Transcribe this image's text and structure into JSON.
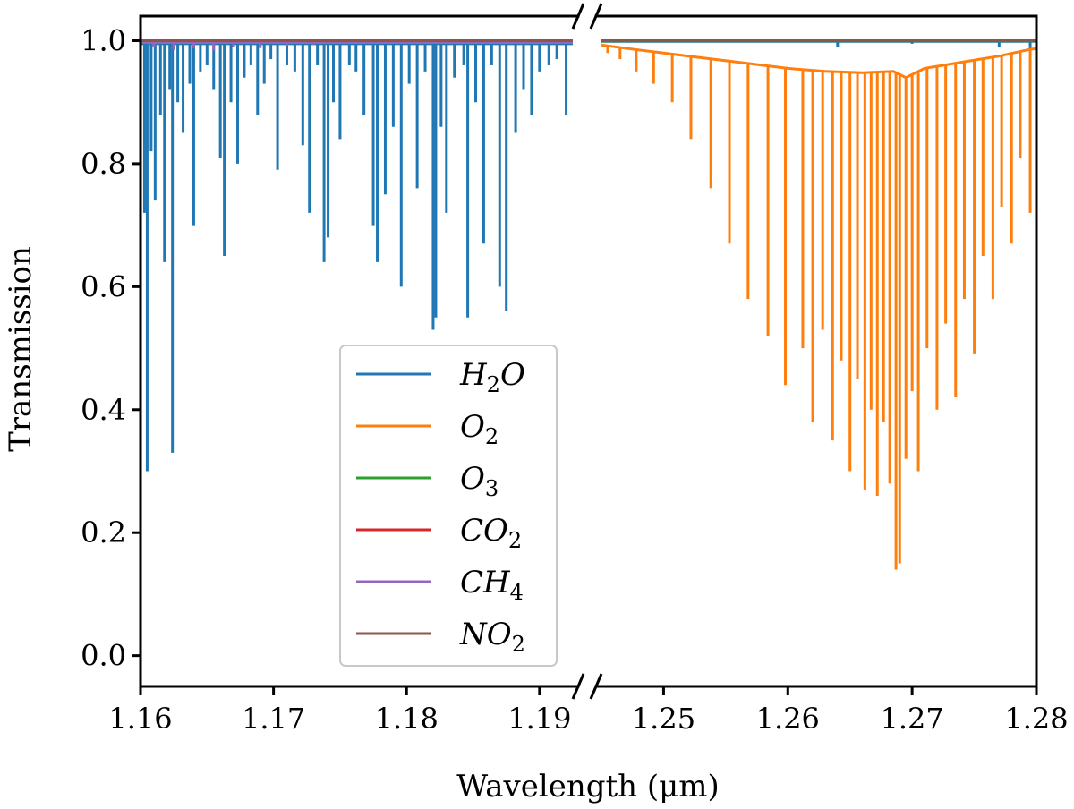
{
  "chart_data": {
    "type": "line",
    "title": "",
    "xlabel": "Wavelength (μm)",
    "ylabel": "Transmission",
    "ylim": [
      -0.05,
      1.04
    ],
    "yticks": [
      "0.0",
      "0.2",
      "0.4",
      "0.6",
      "0.8",
      "1.0"
    ],
    "broken_x_axis": true,
    "segments": [
      {
        "xlim": [
          1.16,
          1.1925
        ],
        "xticks": [
          "1.16",
          "1.17",
          "1.18",
          "1.19"
        ]
      },
      {
        "xlim": [
          1.245,
          1.28
        ],
        "xticks": [
          "1.25",
          "1.26",
          "1.27",
          "1.28"
        ]
      }
    ],
    "legend": {
      "location": "center-left"
    },
    "series": [
      {
        "name": "H2O",
        "label_base": "H",
        "label_sub": "2",
        "label_tail": "O",
        "color": "#1f77b4",
        "baseline": [
          [
            1.16,
            0.995
          ],
          [
            1.1925,
            0.995
          ],
          [
            1.245,
            0.999
          ],
          [
            1.28,
            0.999
          ]
        ],
        "lines": [
          [
            1.1603,
            0.72
          ],
          [
            1.1605,
            0.3
          ],
          [
            1.1608,
            0.82
          ],
          [
            1.1611,
            0.74
          ],
          [
            1.1615,
            0.88
          ],
          [
            1.1618,
            0.64
          ],
          [
            1.1622,
            0.92
          ],
          [
            1.1624,
            0.33
          ],
          [
            1.1628,
            0.9
          ],
          [
            1.1632,
            0.85
          ],
          [
            1.1637,
            0.93
          ],
          [
            1.164,
            0.7
          ],
          [
            1.1645,
            0.95
          ],
          [
            1.165,
            0.96
          ],
          [
            1.1655,
            0.92
          ],
          [
            1.166,
            0.81
          ],
          [
            1.1663,
            0.65
          ],
          [
            1.1668,
            0.9
          ],
          [
            1.1673,
            0.8
          ],
          [
            1.1678,
            0.94
          ],
          [
            1.1683,
            0.96
          ],
          [
            1.1688,
            0.88
          ],
          [
            1.1693,
            0.93
          ],
          [
            1.1698,
            0.97
          ],
          [
            1.1703,
            0.79
          ],
          [
            1.171,
            0.96
          ],
          [
            1.1716,
            0.95
          ],
          [
            1.1722,
            0.83
          ],
          [
            1.1727,
            0.72
          ],
          [
            1.1733,
            0.96
          ],
          [
            1.1738,
            0.64
          ],
          [
            1.1741,
            0.68
          ],
          [
            1.1745,
            0.9
          ],
          [
            1.175,
            0.84
          ],
          [
            1.1757,
            0.96
          ],
          [
            1.1762,
            0.95
          ],
          [
            1.1768,
            0.88
          ],
          [
            1.1775,
            0.7
          ],
          [
            1.1778,
            0.64
          ],
          [
            1.1784,
            0.75
          ],
          [
            1.179,
            0.86
          ],
          [
            1.1796,
            0.6
          ],
          [
            1.1802,
            0.93
          ],
          [
            1.1808,
            0.76
          ],
          [
            1.1814,
            0.95
          ],
          [
            1.182,
            0.53
          ],
          [
            1.1822,
            0.55
          ],
          [
            1.1826,
            0.86
          ],
          [
            1.183,
            0.72
          ],
          [
            1.1836,
            0.94
          ],
          [
            1.1843,
            0.96
          ],
          [
            1.1846,
            0.55
          ],
          [
            1.1852,
            0.9
          ],
          [
            1.1858,
            0.67
          ],
          [
            1.1864,
            0.96
          ],
          [
            1.187,
            0.6
          ],
          [
            1.1875,
            0.56
          ],
          [
            1.1882,
            0.85
          ],
          [
            1.1888,
            0.92
          ],
          [
            1.1894,
            0.88
          ],
          [
            1.19,
            0.95
          ],
          [
            1.1907,
            0.96
          ],
          [
            1.1913,
            0.97
          ],
          [
            1.192,
            0.88
          ],
          [
            1.264,
            0.99
          ],
          [
            1.27,
            0.995
          ],
          [
            1.277,
            0.99
          ],
          [
            1.2795,
            0.985
          ]
        ]
      },
      {
        "name": "O2",
        "label_base": "O",
        "label_sub": "2",
        "label_tail": "",
        "color": "#ff7f0e",
        "baseline": [
          [
            1.245,
            0.993
          ],
          [
            1.248,
            0.985
          ],
          [
            1.252,
            0.975
          ],
          [
            1.256,
            0.965
          ],
          [
            1.26,
            0.955
          ],
          [
            1.263,
            0.95
          ],
          [
            1.266,
            0.948
          ],
          [
            1.2685,
            0.95
          ],
          [
            1.2695,
            0.94
          ],
          [
            1.271,
            0.955
          ],
          [
            1.274,
            0.965
          ],
          [
            1.277,
            0.975
          ],
          [
            1.2795,
            0.986
          ],
          [
            1.28,
            0.987
          ]
        ],
        "lines": [
          [
            1.2455,
            0.98
          ],
          [
            1.2465,
            0.97
          ],
          [
            1.2478,
            0.95
          ],
          [
            1.2492,
            0.93
          ],
          [
            1.2507,
            0.9
          ],
          [
            1.2522,
            0.84
          ],
          [
            1.2538,
            0.76
          ],
          [
            1.2553,
            0.67
          ],
          [
            1.2568,
            0.58
          ],
          [
            1.2584,
            0.52
          ],
          [
            1.2598,
            0.44
          ],
          [
            1.2612,
            0.5
          ],
          [
            1.262,
            0.38
          ],
          [
            1.2628,
            0.53
          ],
          [
            1.2636,
            0.35
          ],
          [
            1.2643,
            0.48
          ],
          [
            1.265,
            0.3
          ],
          [
            1.2656,
            0.45
          ],
          [
            1.2662,
            0.27
          ],
          [
            1.2667,
            0.4
          ],
          [
            1.2672,
            0.26
          ],
          [
            1.2677,
            0.38
          ],
          [
            1.2682,
            0.28
          ],
          [
            1.2687,
            0.14
          ],
          [
            1.269,
            0.15
          ],
          [
            1.2695,
            0.32
          ],
          [
            1.27,
            0.43
          ],
          [
            1.2705,
            0.3
          ],
          [
            1.2712,
            0.5
          ],
          [
            1.272,
            0.4
          ],
          [
            1.2727,
            0.54
          ],
          [
            1.2735,
            0.42
          ],
          [
            1.2742,
            0.58
          ],
          [
            1.275,
            0.49
          ],
          [
            1.2757,
            0.65
          ],
          [
            1.2765,
            0.58
          ],
          [
            1.2772,
            0.73
          ],
          [
            1.278,
            0.67
          ],
          [
            1.2787,
            0.81
          ],
          [
            1.2795,
            0.72
          ],
          [
            1.28,
            0.87
          ]
        ]
      },
      {
        "name": "O3",
        "label_base": "O",
        "label_sub": "3",
        "label_tail": "",
        "color": "#2ca02c",
        "baseline": [
          [
            1.16,
            0.9995
          ],
          [
            1.1925,
            0.9995
          ],
          [
            1.245,
            0.9995
          ],
          [
            1.28,
            0.9995
          ]
        ],
        "lines": []
      },
      {
        "name": "CO2",
        "label_base": "CO",
        "label_sub": "2",
        "label_tail": "",
        "color": "#d62728",
        "baseline": [
          [
            1.16,
            1.0
          ],
          [
            1.1925,
            1.0
          ],
          [
            1.245,
            1.0
          ],
          [
            1.28,
            1.0
          ]
        ],
        "lines": []
      },
      {
        "name": "CH4",
        "label_base": "CH",
        "label_sub": "4",
        "label_tail": "",
        "color": "#9467bd",
        "baseline": [
          [
            1.16,
            0.997
          ],
          [
            1.1925,
            0.997
          ]
        ],
        "lines": [
          [
            1.161,
            0.99
          ],
          [
            1.1625,
            0.985
          ],
          [
            1.164,
            0.988
          ],
          [
            1.1655,
            0.984
          ],
          [
            1.167,
            0.99
          ],
          [
            1.169,
            0.988
          ],
          [
            1.171,
            0.992
          ],
          [
            1.173,
            0.993
          ]
        ]
      },
      {
        "name": "NO2",
        "label_base": "NO",
        "label_sub": "2",
        "label_tail": "",
        "color": "#8c564b",
        "baseline": [
          [
            1.16,
            1.0
          ],
          [
            1.1925,
            1.0
          ],
          [
            1.245,
            1.0
          ],
          [
            1.28,
            1.0
          ]
        ],
        "lines": []
      }
    ]
  }
}
